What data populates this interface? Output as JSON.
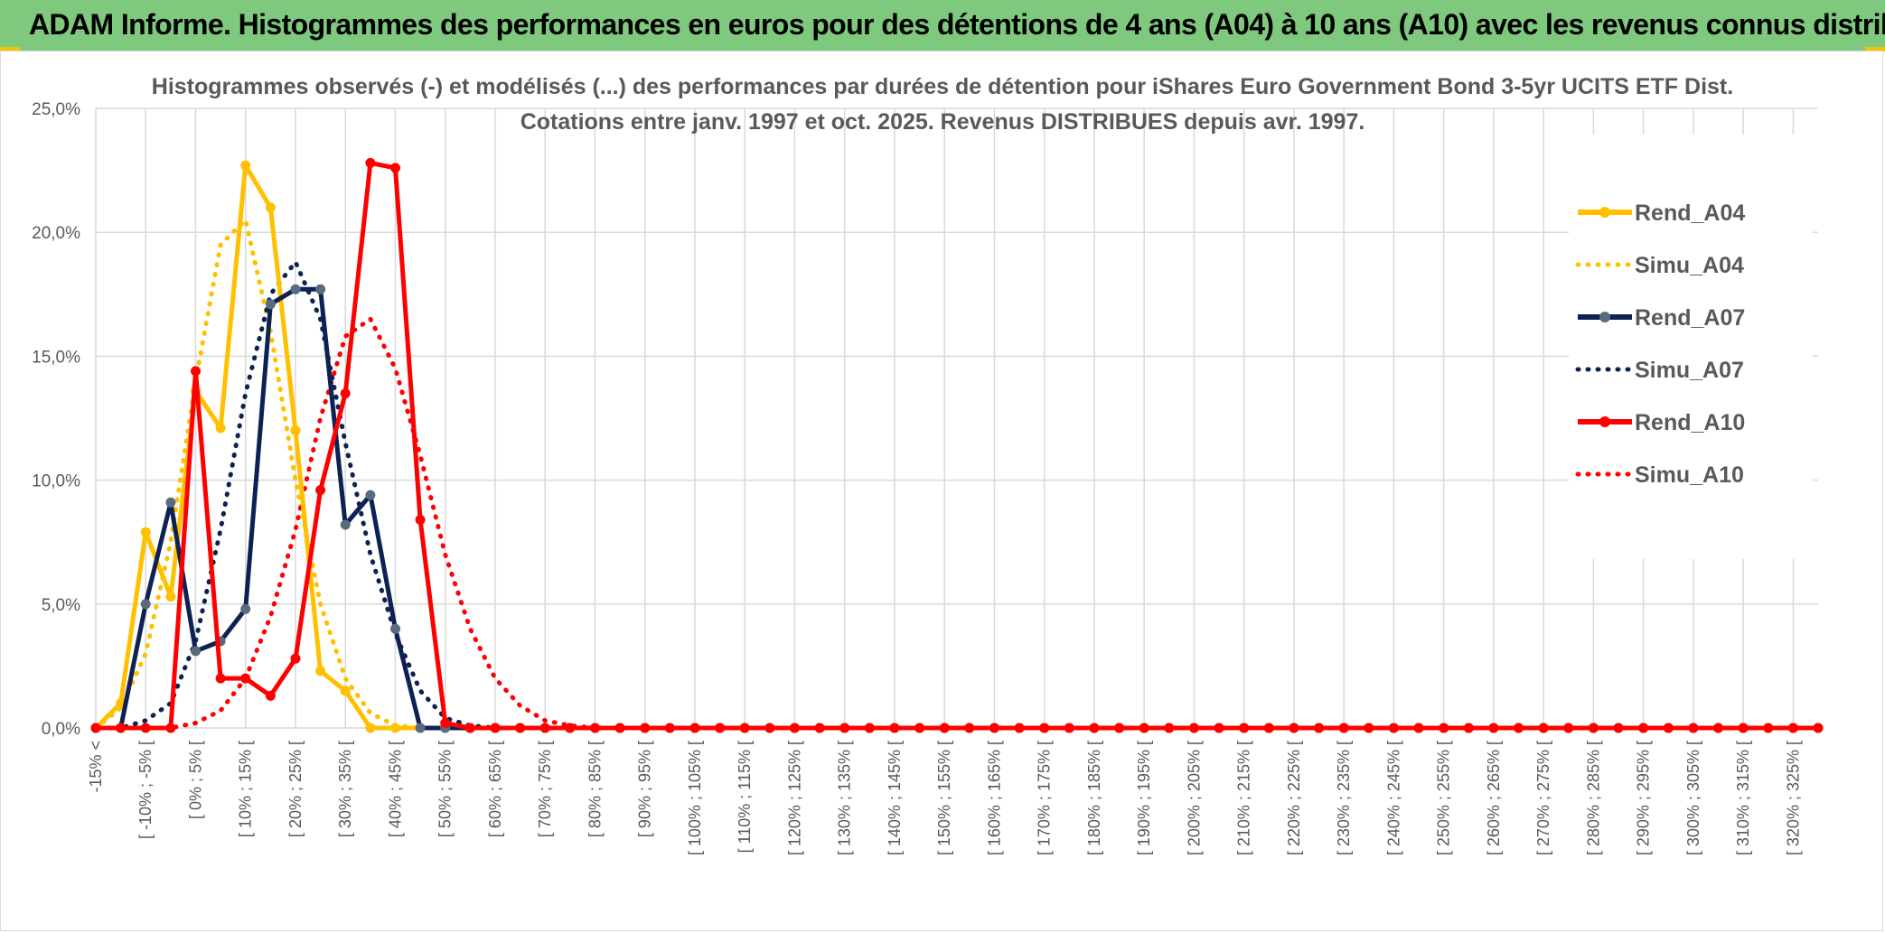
{
  "banner": {
    "title": "ADAM Informe. Histogrammes des performances en euros pour des détentions de 4 ans (A04) à 10 ans (A10) avec les revenus connus distribués"
  },
  "colors": {
    "banner_bg": "#7fc97f",
    "a04": "#ffc000",
    "a07": "#0d2154",
    "a07_marker": "#5a6b80",
    "a10": "#ff0000",
    "grid": "#d9d9d9",
    "text": "#595959"
  },
  "chart_data": {
    "type": "line",
    "title": "Histogrammes observés (-) et modélisés (...) des performances par durées de détention pour iShares Euro Government Bond 3-5yr UCITS ETF Dist.",
    "subtitle": "Cotations entre janv. 1997 et oct. 2025. Revenus DISTRIBUES depuis avr. 1997.",
    "xlabel": "",
    "ylabel": "",
    "ylim": [
      0,
      25
    ],
    "ytick_labels": [
      "0,0%",
      "5,0%",
      "10,0%",
      "15,0%",
      "20,0%",
      "25,0%"
    ],
    "grid": true,
    "legend_position": "right",
    "x_labels": [
      "-15% <",
      "[ -10% ; -5% [",
      "[ 0% ; 5% [",
      "[ 10% ; 15% [",
      "[ 20% ; 25% [",
      "[ 30% ; 35% [",
      "[ 40% ; 45% [",
      "[ 50% ; 55% [",
      "[ 60% ; 65% [",
      "[ 70% ; 75% [",
      "[ 80% ; 85% [",
      "[ 90% ; 95% [",
      "[ 100% ; 105% [",
      "[ 110% ; 115% [",
      "[ 120% ; 125% [",
      "[ 130% ; 135% [",
      "[ 140% ; 145% [",
      "[ 150% ; 155% [",
      "[ 160% ; 165% [",
      "[ 170% ; 175% [",
      "[ 180% ; 185% [",
      "[ 190% ; 195% [",
      "[ 200% ; 205% [",
      "[ 210% ; 215% [",
      "[ 220% ; 225% [",
      "[ 230% ; 235% [",
      "[ 240% ; 245% [",
      "[ 250% ; 255% [",
      "[ 260% ; 265% [",
      "[ 270% ; 275% [",
      "[ 280% ; 285% [",
      "[ 290% ; 295% [",
      "[ 300% ; 305% [",
      "[ 310% ; 315% [",
      "[ 320% ; 325% ["
    ],
    "n_points": 70,
    "series": [
      {
        "name": "Rend_A04",
        "style": "solid",
        "color": "#ffc000",
        "values": [
          0,
          1.0,
          7.9,
          5.3,
          13.6,
          12.1,
          22.7,
          21.0,
          12.0,
          2.3,
          1.5,
          0,
          0,
          0
        ]
      },
      {
        "name": "Simu_A04",
        "style": "dotted",
        "color": "#ffc000",
        "values": [
          0,
          0.8,
          3.0,
          7.5,
          14.0,
          19.5,
          20.5,
          16.0,
          10.0,
          5.0,
          2.0,
          0.6,
          0.1,
          0
        ]
      },
      {
        "name": "Rend_A07",
        "style": "solid",
        "color": "#0d2154",
        "values": [
          0,
          0,
          5.0,
          9.1,
          3.1,
          3.5,
          4.8,
          17.1,
          17.7,
          17.7,
          8.2,
          9.4,
          4.0,
          0,
          0
        ]
      },
      {
        "name": "Simu_A07",
        "style": "dotted",
        "color": "#0d2154",
        "values": [
          0,
          0,
          0.3,
          1.0,
          3.5,
          8.0,
          13.5,
          17.5,
          18.8,
          16.5,
          11.5,
          7.0,
          3.8,
          1.5,
          0.4,
          0.1,
          0
        ]
      },
      {
        "name": "Rend_A10",
        "style": "solid",
        "color": "#ff0000",
        "values": [
          0,
          0,
          0,
          0,
          14.4,
          2.0,
          2.0,
          1.3,
          2.8,
          9.6,
          13.5,
          22.8,
          22.6,
          8.4,
          0.2,
          0
        ]
      },
      {
        "name": "Simu_A10",
        "style": "dotted",
        "color": "#ff0000",
        "values": [
          0,
          0,
          0,
          0,
          0.2,
          0.7,
          2.0,
          4.5,
          8.0,
          12.5,
          15.8,
          16.5,
          14.5,
          11.0,
          7.0,
          4.0,
          2.0,
          0.9,
          0.3,
          0.1,
          0
        ]
      }
    ]
  }
}
